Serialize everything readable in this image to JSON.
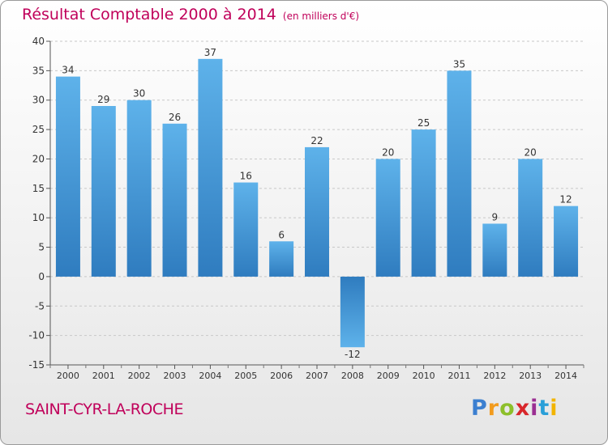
{
  "chart_data": {
    "type": "bar",
    "title": "Résultat Comptable 2000 à 2014",
    "subtitle": "(en milliers d'€)",
    "categories": [
      "2000",
      "2001",
      "2002",
      "2003",
      "2004",
      "2005",
      "2006",
      "2007",
      "2008",
      "2009",
      "2010",
      "2011",
      "2012",
      "2013",
      "2014"
    ],
    "values": [
      34,
      29,
      30,
      26,
      37,
      16,
      6,
      22,
      -12,
      20,
      25,
      35,
      9,
      20,
      12
    ],
    "ylim": [
      -15,
      40
    ],
    "yticks": [
      -15,
      -10,
      -5,
      0,
      5,
      10,
      15,
      20,
      25,
      30,
      35,
      40
    ],
    "grid": true,
    "xlabel": "",
    "ylabel": "",
    "colors": {
      "bar_dark": "#2f7cbf",
      "bar_light": "#5eb2ea",
      "grid": "#c8c8c8",
      "title": "#c0005a"
    }
  },
  "footer": {
    "city": "SAINT-CYR-LA-ROCHE",
    "logo": {
      "text": "Proxiti",
      "letters": [
        "P",
        "r",
        "o",
        "x",
        "i",
        "t",
        "i"
      ],
      "letter_colors": [
        "#3b7fd0",
        "#f29b1d",
        "#8dbf2a",
        "#d8262b",
        "#9b2f92",
        "#2a9fd8",
        "#f2b400"
      ]
    }
  }
}
